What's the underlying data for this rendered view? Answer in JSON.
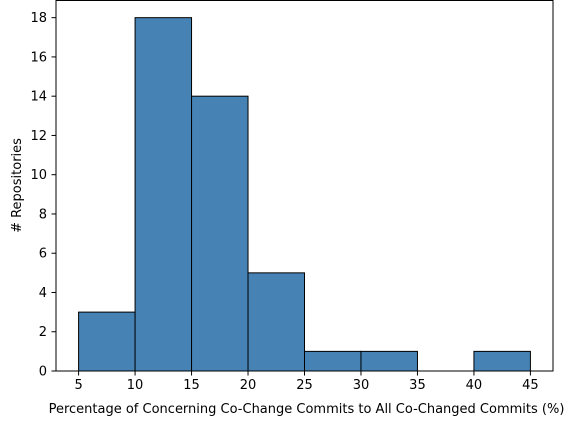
{
  "chart_data": {
    "type": "bar",
    "bins": [
      {
        "x0": 5,
        "x1": 10,
        "count": 3
      },
      {
        "x0": 10,
        "x1": 15,
        "count": 18
      },
      {
        "x0": 15,
        "x1": 20,
        "count": 14
      },
      {
        "x0": 20,
        "x1": 25,
        "count": 5
      },
      {
        "x0": 25,
        "x1": 30,
        "count": 1
      },
      {
        "x0": 30,
        "x1": 35,
        "count": 1
      },
      {
        "x0": 35,
        "x1": 40,
        "count": 0
      },
      {
        "x0": 40,
        "x1": 45,
        "count": 1
      }
    ],
    "xlabel": "Percentage of Concerning Co-Change Commits to All Co-Changed Commits (%)",
    "ylabel": "# Repositories",
    "xlim": [
      3.0,
      47.0
    ],
    "ylim": [
      0,
      18.9
    ],
    "xticks": [
      5,
      10,
      15,
      20,
      25,
      30,
      35,
      40,
      45
    ],
    "yticks": [
      0,
      2,
      4,
      6,
      8,
      10,
      12,
      14,
      16,
      18
    ],
    "bar_color": "#4682b4",
    "edge_color": "#000000",
    "grid": false
  }
}
